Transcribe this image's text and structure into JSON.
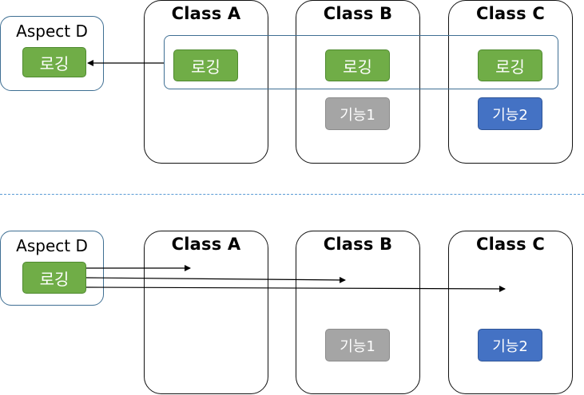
{
  "top": {
    "aspect": {
      "title": "Aspect D",
      "chip": "로깅"
    },
    "class_a": {
      "title": "Class A",
      "chip": "로깅"
    },
    "class_b": {
      "title": "Class B",
      "chip": "로깅",
      "feature": "기능1"
    },
    "class_c": {
      "title": "Class C",
      "chip": "로깅",
      "feature": "기능2"
    }
  },
  "bottom": {
    "aspect": {
      "title": "Aspect D",
      "chip": "로깅"
    },
    "class_a": {
      "title": "Class A"
    },
    "class_b": {
      "title": "Class B",
      "feature": "기능1"
    },
    "class_c": {
      "title": "Class C",
      "feature": "기능2"
    }
  },
  "colors": {
    "logging_chip": "#70ad47",
    "feature1_chip": "#a5a5a5",
    "feature2_chip": "#4472c4",
    "aspect_border": "#3f6f93",
    "divider": "#5b9bd5"
  }
}
